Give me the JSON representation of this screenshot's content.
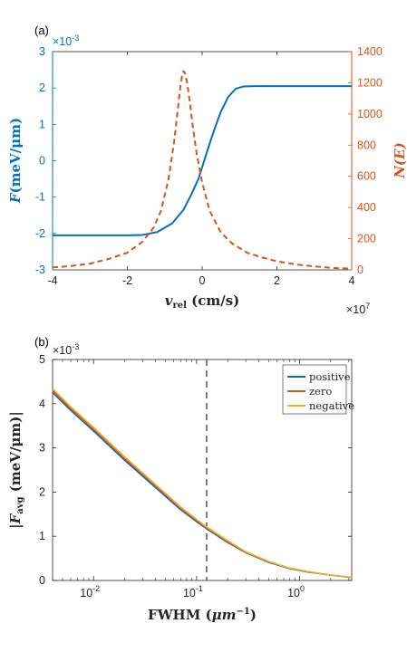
{
  "colors": {
    "blue": "#0072BD",
    "orange": "#D95319",
    "yellow": "#EDB120",
    "axis": "#262626",
    "vline": "#555555"
  },
  "chart_data": [
    {
      "panel_label": "(a)",
      "type": "line",
      "x_multiplier": "×10",
      "x_multiplier_exp": "7",
      "y_left_multiplier": "×10",
      "y_left_multiplier_exp": "-3",
      "xlim": [
        -4,
        4
      ],
      "ylim_left": [
        -3,
        3
      ],
      "ylim_right": [
        0,
        1400
      ],
      "grid": false,
      "xlabel": {
        "main": "v",
        "sub": "rel",
        "rest": " (cm/s)"
      },
      "ylabel_left": {
        "main": "F",
        "rest": "(meV/μm)"
      },
      "ylabel_right": "N(E)",
      "x_ticks": [
        -4,
        -2,
        0,
        2,
        4
      ],
      "y_left_ticks": [
        -3,
        -2,
        -1,
        0,
        1,
        2,
        3
      ],
      "y_right_ticks": [
        0,
        200,
        400,
        600,
        800,
        1000,
        1200,
        1400
      ],
      "series": [
        {
          "axis": "left",
          "style": "solid",
          "color": "#0072BD",
          "x": [
            -4,
            -3,
            -2,
            -1.6,
            -1.2,
            -0.8,
            -0.5,
            -0.3,
            -0.1,
            0.0,
            0.1,
            0.3,
            0.5,
            0.7,
            0.9,
            1.1,
            1.4,
            2,
            3,
            4
          ],
          "y": [
            -2.05,
            -2.05,
            -2.05,
            -2.04,
            -1.96,
            -1.72,
            -1.35,
            -0.95,
            -0.5,
            -0.18,
            0.15,
            0.78,
            1.35,
            1.76,
            1.98,
            2.04,
            2.05,
            2.05,
            2.05,
            2.05
          ]
        },
        {
          "axis": "right",
          "style": "dashed",
          "color": "#D95319",
          "x": [
            -4,
            -3.5,
            -3,
            -2.5,
            -2,
            -1.6,
            -1.3,
            -1.1,
            -0.9,
            -0.75,
            -0.65,
            -0.58,
            -0.53,
            -0.5,
            -0.46,
            -0.4,
            -0.32,
            -0.25,
            -0.15,
            0,
            0.2,
            0.5,
            0.8,
            1.2,
            1.6,
            2,
            2.5,
            3,
            3.5,
            4
          ],
          "y": [
            15,
            25,
            40,
            70,
            110,
            180,
            270,
            380,
            580,
            820,
            1030,
            1180,
            1255,
            1275,
            1265,
            1200,
            1060,
            920,
            750,
            560,
            380,
            240,
            170,
            110,
            80,
            55,
            35,
            22,
            12,
            8
          ]
        }
      ]
    },
    {
      "panel_label": "(b)",
      "type": "line",
      "x_scale": "log",
      "xlim": [
        0.004,
        3.2
      ],
      "ylim": [
        0,
        5
      ],
      "grid": false,
      "y_multiplier": "×10",
      "y_multiplier_exp": "-3",
      "xlabel": {
        "main": "FWHM (",
        "mu": "μm",
        "exp": "−1",
        "rest": ")"
      },
      "ylabel": {
        "open": "|",
        "main": "F",
        "sub": "avg",
        "rest": " (meV/μm)|"
      },
      "x_ticks": [
        {
          "value": 0.01,
          "label": "10",
          "exp": "-2"
        },
        {
          "value": 0.1,
          "label": "10",
          "exp": "-1"
        },
        {
          "value": 1,
          "label": "10",
          "exp": "0"
        }
      ],
      "y_ticks": [
        0,
        1,
        2,
        3,
        4,
        5
      ],
      "vline_x": 0.125,
      "legend_position": "top-right",
      "series": [
        {
          "name": "positive",
          "color": "#0072BD",
          "x": [
            0.004,
            0.006,
            0.01,
            0.02,
            0.04,
            0.07,
            0.1,
            0.125,
            0.2,
            0.3,
            0.5,
            0.8,
            1.2,
            2,
            3.2
          ],
          "y": [
            4.25,
            3.85,
            3.38,
            2.72,
            2.1,
            1.6,
            1.33,
            1.17,
            0.86,
            0.63,
            0.41,
            0.27,
            0.19,
            0.12,
            0.07
          ]
        },
        {
          "name": "zero",
          "color": "#D95319",
          "x": [
            0.004,
            0.006,
            0.01,
            0.02,
            0.04,
            0.07,
            0.1,
            0.125,
            0.2,
            0.3,
            0.5,
            0.8,
            1.2,
            2,
            3.2
          ],
          "y": [
            4.3,
            3.89,
            3.42,
            2.76,
            2.14,
            1.63,
            1.36,
            1.19,
            0.88,
            0.64,
            0.42,
            0.28,
            0.2,
            0.12,
            0.07
          ]
        },
        {
          "name": "negative",
          "color": "#EDB120",
          "x": [
            0.004,
            0.006,
            0.01,
            0.02,
            0.04,
            0.07,
            0.1,
            0.125,
            0.2,
            0.3,
            0.5,
            0.8,
            1.2,
            2,
            3.2
          ],
          "y": [
            4.34,
            3.93,
            3.46,
            2.8,
            2.17,
            1.66,
            1.38,
            1.21,
            0.9,
            0.65,
            0.43,
            0.28,
            0.2,
            0.12,
            0.07
          ]
        }
      ]
    }
  ]
}
